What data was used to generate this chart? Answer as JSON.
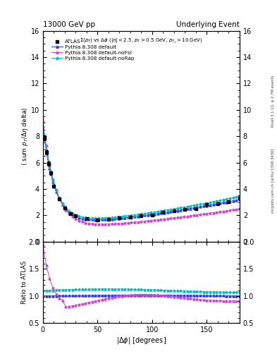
{
  "title_left": "13000 GeV pp",
  "title_right": "Underlying Event",
  "subtitle": "$\\Sigma(p_T)$ vs $\\Delta\\phi$ ($|\\eta| < 2.5$, $p_T > 0.5$ GeV, $p_{T_1} > 10$ GeV)",
  "ylabel_main": "$\\langle$ sum $p_T / \\Delta\\eta$ delta$\\rangle$",
  "ylabel_ratio": "Ratio to ATLAS",
  "xlabel": "$|\\Delta\\phi|$ [degrees]",
  "right_label1": "Rivet 3.1.10, ≥ 2.7M events",
  "right_label2": "mcplots.cern.ch [arXiv:1306.3436]",
  "ylim_main": [
    0,
    16
  ],
  "ylim_ratio": [
    0.5,
    2.0
  ],
  "yticks_main": [
    0,
    2,
    4,
    6,
    8,
    10,
    12,
    14,
    16
  ],
  "yticks_ratio": [
    0.5,
    1.0,
    1.5,
    2.0
  ],
  "xticks": [
    0,
    50,
    100,
    150
  ],
  "colors": {
    "atlas": "#000000",
    "default": "#3333ff",
    "noFsr": "#cc44cc",
    "noRap": "#00bbbb"
  },
  "background_color": "#ffffff"
}
